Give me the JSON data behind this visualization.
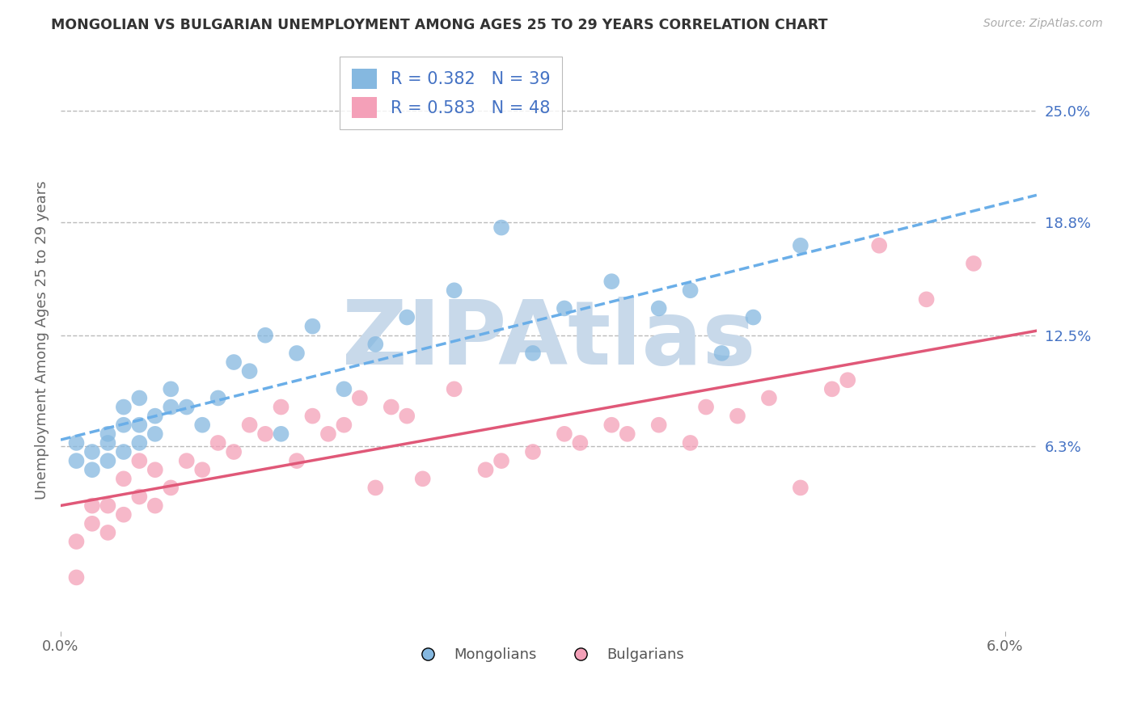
{
  "title": "MONGOLIAN VS BULGARIAN UNEMPLOYMENT AMONG AGES 25 TO 29 YEARS CORRELATION CHART",
  "source": "Source: ZipAtlas.com",
  "ylabel": "Unemployment Among Ages 25 to 29 years",
  "xlim": [
    0.0,
    0.062
  ],
  "ylim": [
    -0.04,
    0.285
  ],
  "mongolian_R": 0.382,
  "mongolian_N": 39,
  "bulgarian_R": 0.583,
  "bulgarian_N": 48,
  "mongolian_color": "#85b8e0",
  "bulgarian_color": "#f4a0b8",
  "mongolian_line_color": "#6aaee8",
  "bulgarian_line_color": "#e05878",
  "watermark_color": "#c8d9ea",
  "background_color": "#ffffff",
  "grid_color": "#bbbbbb",
  "ytick_vals": [
    0.063,
    0.125,
    0.188,
    0.25
  ],
  "ytick_labels": [
    "6.3%",
    "12.5%",
    "18.8%",
    "25.0%"
  ],
  "legend_label_color": "#4472c4",
  "mongolian_x": [
    0.001,
    0.001,
    0.002,
    0.002,
    0.003,
    0.003,
    0.003,
    0.004,
    0.004,
    0.004,
    0.005,
    0.005,
    0.005,
    0.006,
    0.006,
    0.007,
    0.007,
    0.008,
    0.009,
    0.01,
    0.011,
    0.012,
    0.013,
    0.014,
    0.015,
    0.016,
    0.018,
    0.02,
    0.022,
    0.025,
    0.028,
    0.03,
    0.032,
    0.035,
    0.038,
    0.04,
    0.042,
    0.044,
    0.047
  ],
  "mongolian_y": [
    0.055,
    0.065,
    0.05,
    0.06,
    0.055,
    0.065,
    0.07,
    0.06,
    0.075,
    0.085,
    0.065,
    0.075,
    0.09,
    0.07,
    0.08,
    0.085,
    0.095,
    0.085,
    0.075,
    0.09,
    0.11,
    0.105,
    0.125,
    0.07,
    0.115,
    0.13,
    0.095,
    0.12,
    0.135,
    0.15,
    0.185,
    0.115,
    0.14,
    0.155,
    0.14,
    0.15,
    0.115,
    0.135,
    0.175
  ],
  "bulgarian_x": [
    0.001,
    0.001,
    0.002,
    0.002,
    0.003,
    0.003,
    0.004,
    0.004,
    0.005,
    0.005,
    0.006,
    0.006,
    0.007,
    0.008,
    0.009,
    0.01,
    0.011,
    0.012,
    0.013,
    0.014,
    0.015,
    0.016,
    0.017,
    0.018,
    0.019,
    0.02,
    0.021,
    0.022,
    0.023,
    0.025,
    0.027,
    0.028,
    0.03,
    0.032,
    0.033,
    0.035,
    0.036,
    0.038,
    0.04,
    0.041,
    0.043,
    0.045,
    0.047,
    0.049,
    0.05,
    0.052,
    0.055,
    0.058
  ],
  "bulgarian_y": [
    -0.01,
    0.01,
    0.02,
    0.03,
    0.015,
    0.03,
    0.025,
    0.045,
    0.035,
    0.055,
    0.03,
    0.05,
    0.04,
    0.055,
    0.05,
    0.065,
    0.06,
    0.075,
    0.07,
    0.085,
    0.055,
    0.08,
    0.07,
    0.075,
    0.09,
    0.04,
    0.085,
    0.08,
    0.045,
    0.095,
    0.05,
    0.055,
    0.06,
    0.07,
    0.065,
    0.075,
    0.07,
    0.075,
    0.065,
    0.085,
    0.08,
    0.09,
    0.04,
    0.095,
    0.1,
    0.175,
    0.145,
    0.165
  ]
}
